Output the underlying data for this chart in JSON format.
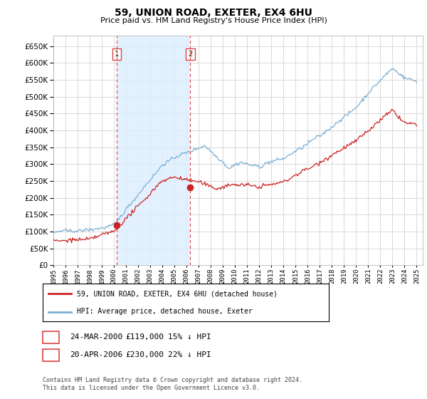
{
  "title": "59, UNION ROAD, EXETER, EX4 6HU",
  "subtitle": "Price paid vs. HM Land Registry's House Price Index (HPI)",
  "ylim": [
    0,
    680000
  ],
  "yticks": [
    0,
    50000,
    100000,
    150000,
    200000,
    250000,
    300000,
    350000,
    400000,
    450000,
    500000,
    550000,
    600000,
    650000
  ],
  "xmin": 1995.0,
  "xmax": 2025.5,
  "sale1_x": 2000.23,
  "sale1_y": 119000,
  "sale2_x": 2006.3,
  "sale2_y": 230000,
  "legend_line1": "59, UNION ROAD, EXETER, EX4 6HU (detached house)",
  "legend_line2": "HPI: Average price, detached house, Exeter",
  "table_row1": [
    "1",
    "24-MAR-2000",
    "£119,000",
    "15% ↓ HPI"
  ],
  "table_row2": [
    "2",
    "20-APR-2006",
    "£230,000",
    "22% ↓ HPI"
  ],
  "footer": "Contains HM Land Registry data © Crown copyright and database right 2024.\nThis data is licensed under the Open Government Licence v3.0.",
  "hpi_color": "#7bafd4",
  "sale_color": "#cc2222",
  "vline_color": "#dd4444",
  "shade_color": "#ddeeff",
  "background_color": "#ffffff",
  "grid_color": "#cccccc"
}
